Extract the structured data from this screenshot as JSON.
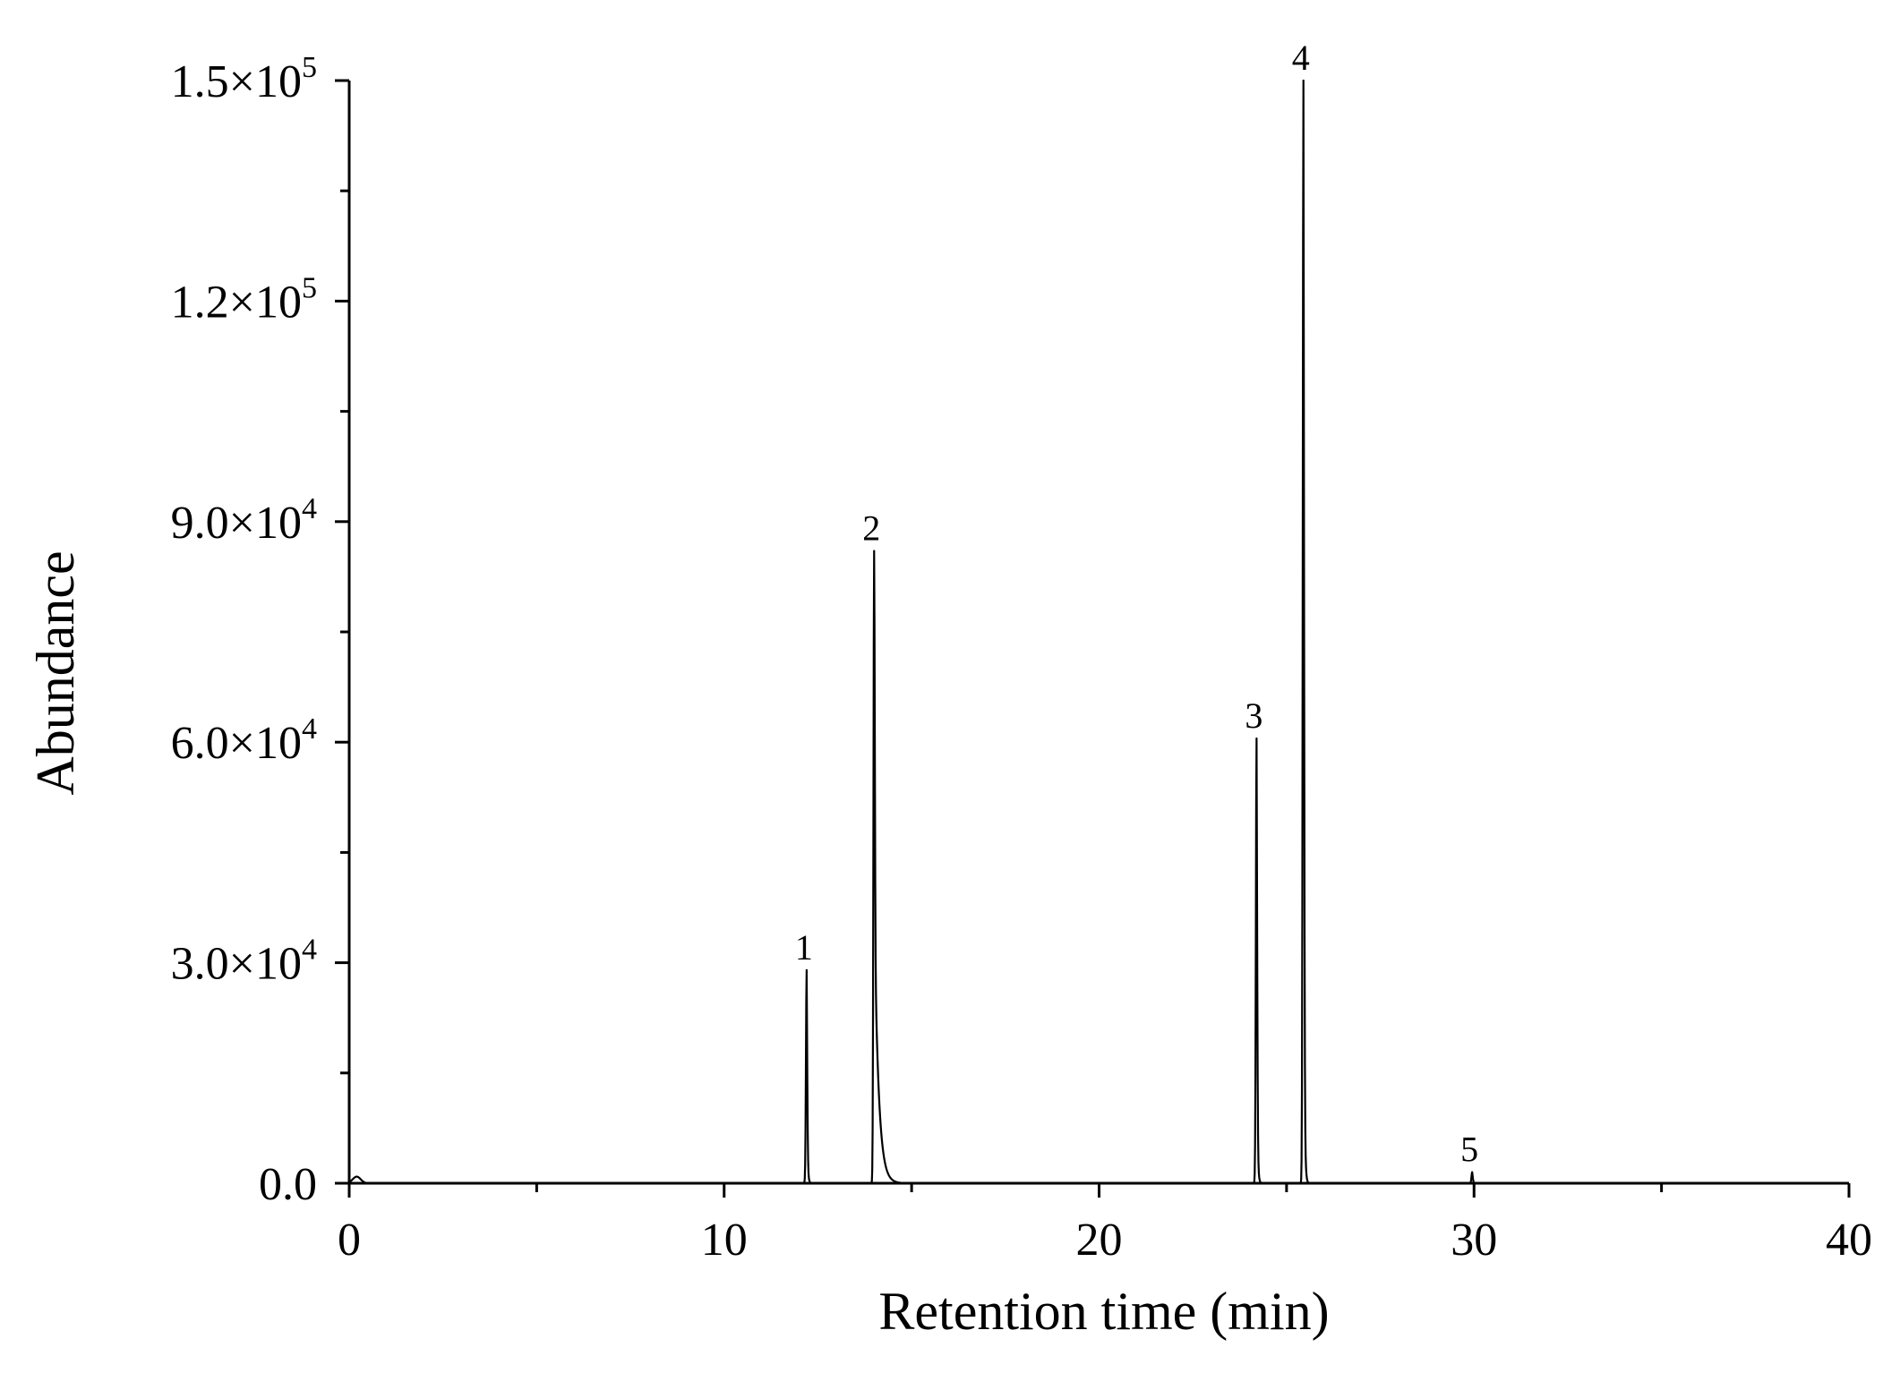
{
  "chart_data": {
    "type": "line",
    "title": "",
    "xlabel": "Retention time (min)",
    "ylabel": "Abundance",
    "xlim": [
      0,
      40
    ],
    "ylim": [
      0,
      150000
    ],
    "grid": false,
    "x_ticks": [
      {
        "value": 0,
        "label": "0"
      },
      {
        "value": 10,
        "label": "10"
      },
      {
        "value": 20,
        "label": "20"
      },
      {
        "value": 30,
        "label": "30"
      },
      {
        "value": 40,
        "label": "40"
      }
    ],
    "x_minor_ticks": [
      5,
      15,
      25,
      35
    ],
    "y_ticks": [
      {
        "value": 0,
        "mantissa": "0.0",
        "times": "",
        "base": "",
        "exp": ""
      },
      {
        "value": 30000,
        "mantissa": "3.0",
        "times": "×",
        "base": "10",
        "exp": "4"
      },
      {
        "value": 60000,
        "mantissa": "6.0",
        "times": "×",
        "base": "10",
        "exp": "4"
      },
      {
        "value": 90000,
        "mantissa": "9.0",
        "times": "×",
        "base": "10",
        "exp": "4"
      },
      {
        "value": 120000,
        "mantissa": "1.2",
        "times": "×",
        "base": "10",
        "exp": "5"
      },
      {
        "value": 150000,
        "mantissa": "1.5",
        "times": "×",
        "base": "10",
        "exp": "5"
      }
    ],
    "y_minor_ticks": [
      15000,
      45000,
      75000,
      105000,
      135000
    ],
    "peaks": [
      {
        "label": "1",
        "rt": 12.2,
        "abundance": 29000,
        "tail": "short"
      },
      {
        "label": "2",
        "rt": 14.0,
        "abundance": 86000,
        "tail": "long"
      },
      {
        "label": "3",
        "rt": 24.2,
        "abundance": 60500,
        "tail": "short"
      },
      {
        "label": "4",
        "rt": 25.45,
        "abundance": 150000,
        "tail": "short"
      },
      {
        "label": "5",
        "rt": 29.95,
        "abundance": 1500,
        "tail": "short"
      }
    ]
  }
}
